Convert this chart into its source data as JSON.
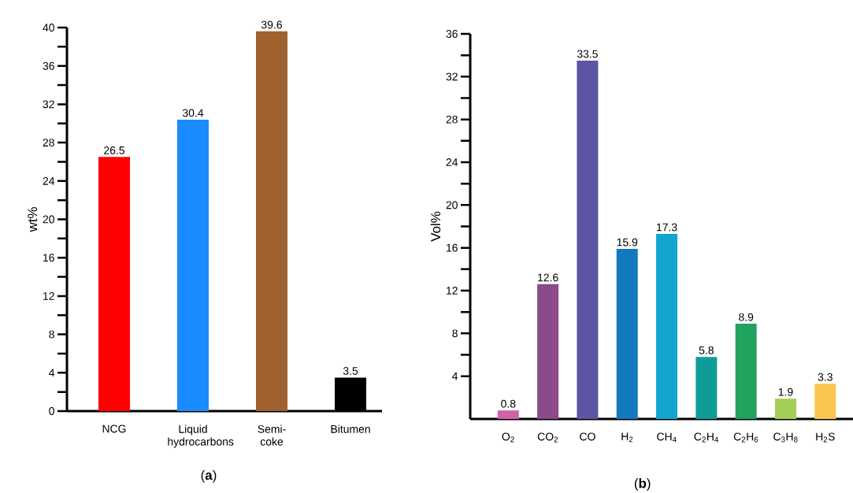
{
  "chart_data": [
    {
      "type": "bar",
      "ylabel": "wt%",
      "categories": [
        "NCG",
        "Liquid hydrocarbons",
        "Semi-coke",
        "Bitumen"
      ],
      "values": [
        26.5,
        30.4,
        39.6,
        3.5
      ],
      "colors": [
        "#ff0000",
        "#1a8cff",
        "#a0612e",
        "#000000"
      ],
      "ylim": [
        0,
        40
      ],
      "yticks": [
        0,
        4,
        8,
        12,
        16,
        20,
        24,
        28,
        32,
        36,
        40
      ],
      "data_labels": true,
      "annotations": [
        "(**a**)"
      ]
    },
    {
      "type": "bar",
      "ylabel": "Vol%",
      "categories": [
        "O$_{2}$",
        "CO$_{2}$",
        "CO",
        "H$_{2}$",
        "CH$_{4}$",
        "C$_{2}$H$_{4}$",
        "C$_{2}$H$_{6}$",
        "C$_{3}$H$_{8}$",
        "H$_{2}$S"
      ],
      "values": [
        0.8,
        12.6,
        33.5,
        15.9,
        17.3,
        5.8,
        8.9,
        1.9,
        3.3
      ],
      "colors": [
        "#d063a8",
        "#8b4a8a",
        "#5b55a3",
        "#1279bd",
        "#12a5d0",
        "#0f9c98",
        "#1fa35f",
        "#a3cf57",
        "#fcc54f"
      ],
      "ylim": [
        0,
        36
      ],
      "yticks": [
        4,
        8,
        12,
        16,
        20,
        24,
        28,
        32,
        36
      ],
      "data_labels": true,
      "annotations": [
        "(**b**)"
      ]
    }
  ]
}
